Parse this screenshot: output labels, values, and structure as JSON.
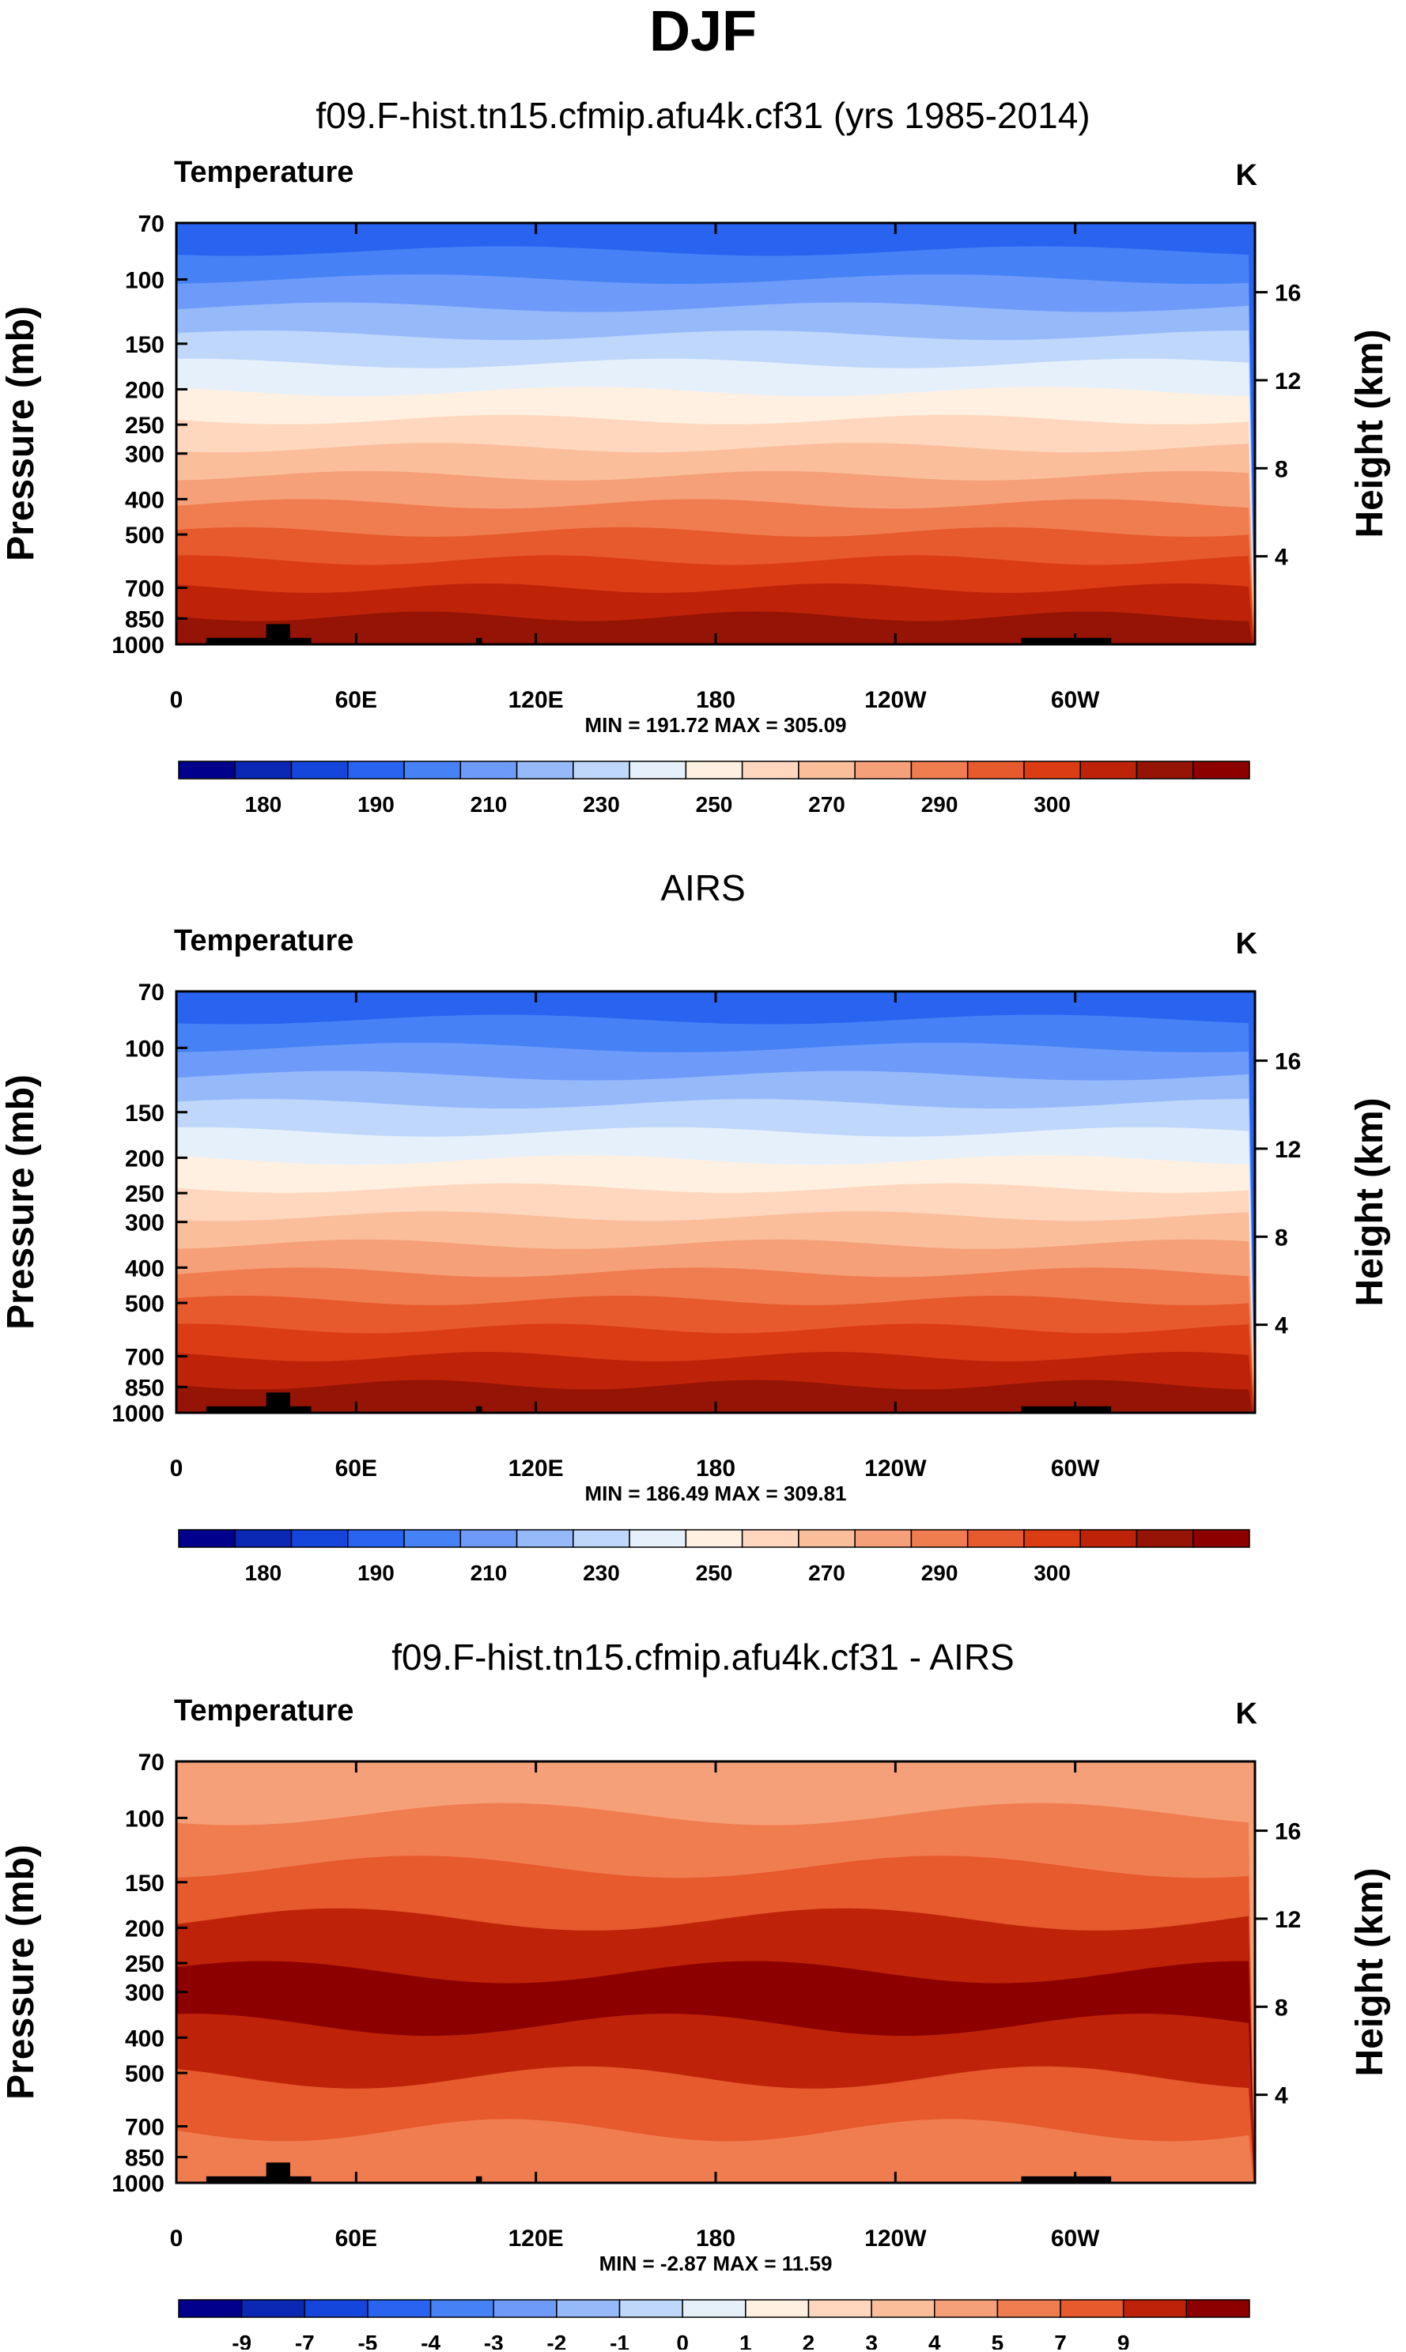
{
  "title": "DJF",
  "chart_data": [
    {
      "type": "heatmap",
      "title": "f09.F-hist.tn15.cfmip.afu4k.cf31 (yrs 1985-2014)",
      "variable": "Temperature",
      "units": "K",
      "ylabel": "Pressure (mb)",
      "ylabel_right": "Height (km)",
      "x_ticks": [
        "0",
        "60E",
        "120E",
        "180",
        "120W",
        "60W"
      ],
      "y_ticks": [
        "70",
        "100",
        "150",
        "200",
        "250",
        "300",
        "400",
        "500",
        "700",
        "850",
        "1000"
      ],
      "height_ticks": [
        "16",
        "12",
        "8",
        "4"
      ],
      "stats": "MIN = 191.72  MAX = 305.09",
      "min": 191.72,
      "max": 305.09,
      "colorbar_labels": [
        "180",
        "190",
        "210",
        "230",
        "250",
        "270",
        "290",
        "300"
      ],
      "colorbar_colors": [
        "#00008c",
        "#0a28b4",
        "#1446dc",
        "#2864f0",
        "#4682f5",
        "#6e9bfa",
        "#96b9fa",
        "#bed7fa",
        "#e6f0fa",
        "#fff0e1",
        "#ffd7be",
        "#fabe9b",
        "#f5a078",
        "#f07d50",
        "#e65a2d",
        "#dc3c14",
        "#be230a",
        "#961405",
        "#8c0000"
      ],
      "bands": [
        "#2864f0",
        "#4682f5",
        "#6e9bfa",
        "#96b9fa",
        "#bed7fa",
        "#e6f0fa",
        "#fff0e1",
        "#ffd7be",
        "#fabe9b",
        "#f5a078",
        "#f07d50",
        "#e65a2d",
        "#dc3c14",
        "#be230a",
        "#961405"
      ]
    },
    {
      "type": "heatmap",
      "title": "AIRS",
      "variable": "Temperature",
      "units": "K",
      "ylabel": "Pressure (mb)",
      "ylabel_right": "Height (km)",
      "x_ticks": [
        "0",
        "60E",
        "120E",
        "180",
        "120W",
        "60W"
      ],
      "y_ticks": [
        "70",
        "100",
        "150",
        "200",
        "250",
        "300",
        "400",
        "500",
        "700",
        "850",
        "1000"
      ],
      "height_ticks": [
        "16",
        "12",
        "8",
        "4"
      ],
      "stats": "MIN = 186.49  MAX = 309.81",
      "min": 186.49,
      "max": 309.81,
      "colorbar_labels": [
        "180",
        "190",
        "210",
        "230",
        "250",
        "270",
        "290",
        "300"
      ],
      "colorbar_colors": [
        "#00008c",
        "#0a28b4",
        "#1446dc",
        "#2864f0",
        "#4682f5",
        "#6e9bfa",
        "#96b9fa",
        "#bed7fa",
        "#e6f0fa",
        "#fff0e1",
        "#ffd7be",
        "#fabe9b",
        "#f5a078",
        "#f07d50",
        "#e65a2d",
        "#dc3c14",
        "#be230a",
        "#961405",
        "#8c0000"
      ],
      "bands": [
        "#2864f0",
        "#4682f5",
        "#6e9bfa",
        "#96b9fa",
        "#bed7fa",
        "#e6f0fa",
        "#fff0e1",
        "#ffd7be",
        "#fabe9b",
        "#f5a078",
        "#f07d50",
        "#e65a2d",
        "#dc3c14",
        "#be230a",
        "#961405"
      ]
    },
    {
      "type": "heatmap",
      "title": "f09.F-hist.tn15.cfmip.afu4k.cf31 - AIRS",
      "variable": "Temperature",
      "units": "K",
      "ylabel": "Pressure (mb)",
      "ylabel_right": "Height (km)",
      "x_ticks": [
        "0",
        "60E",
        "120E",
        "180",
        "120W",
        "60W"
      ],
      "y_ticks": [
        "70",
        "100",
        "150",
        "200",
        "250",
        "300",
        "400",
        "500",
        "700",
        "850",
        "1000"
      ],
      "height_ticks": [
        "16",
        "12",
        "8",
        "4"
      ],
      "stats": "MIN = -2.87  MAX = 11.59",
      "min": -2.87,
      "max": 11.59,
      "colorbar_labels": [
        "-9",
        "-7",
        "-5",
        "-4",
        "-3",
        "-2",
        "-1",
        "0",
        "1",
        "2",
        "3",
        "4",
        "5",
        "7",
        "9"
      ],
      "colorbar_colors": [
        "#00008c",
        "#0a28b4",
        "#1446dc",
        "#2864f0",
        "#4682f5",
        "#6e9bfa",
        "#96b9fa",
        "#bed7fa",
        "#e6f0fa",
        "#fff0e1",
        "#ffd7be",
        "#fabe9b",
        "#f5a078",
        "#f07d50",
        "#e65a2d",
        "#be230a",
        "#8c0000"
      ],
      "bands": [
        "#f5a078",
        "#f07d50",
        "#e65a2d",
        "#be230a",
        "#8c0000",
        "#be230a",
        "#e65a2d",
        "#f07d50"
      ]
    }
  ]
}
